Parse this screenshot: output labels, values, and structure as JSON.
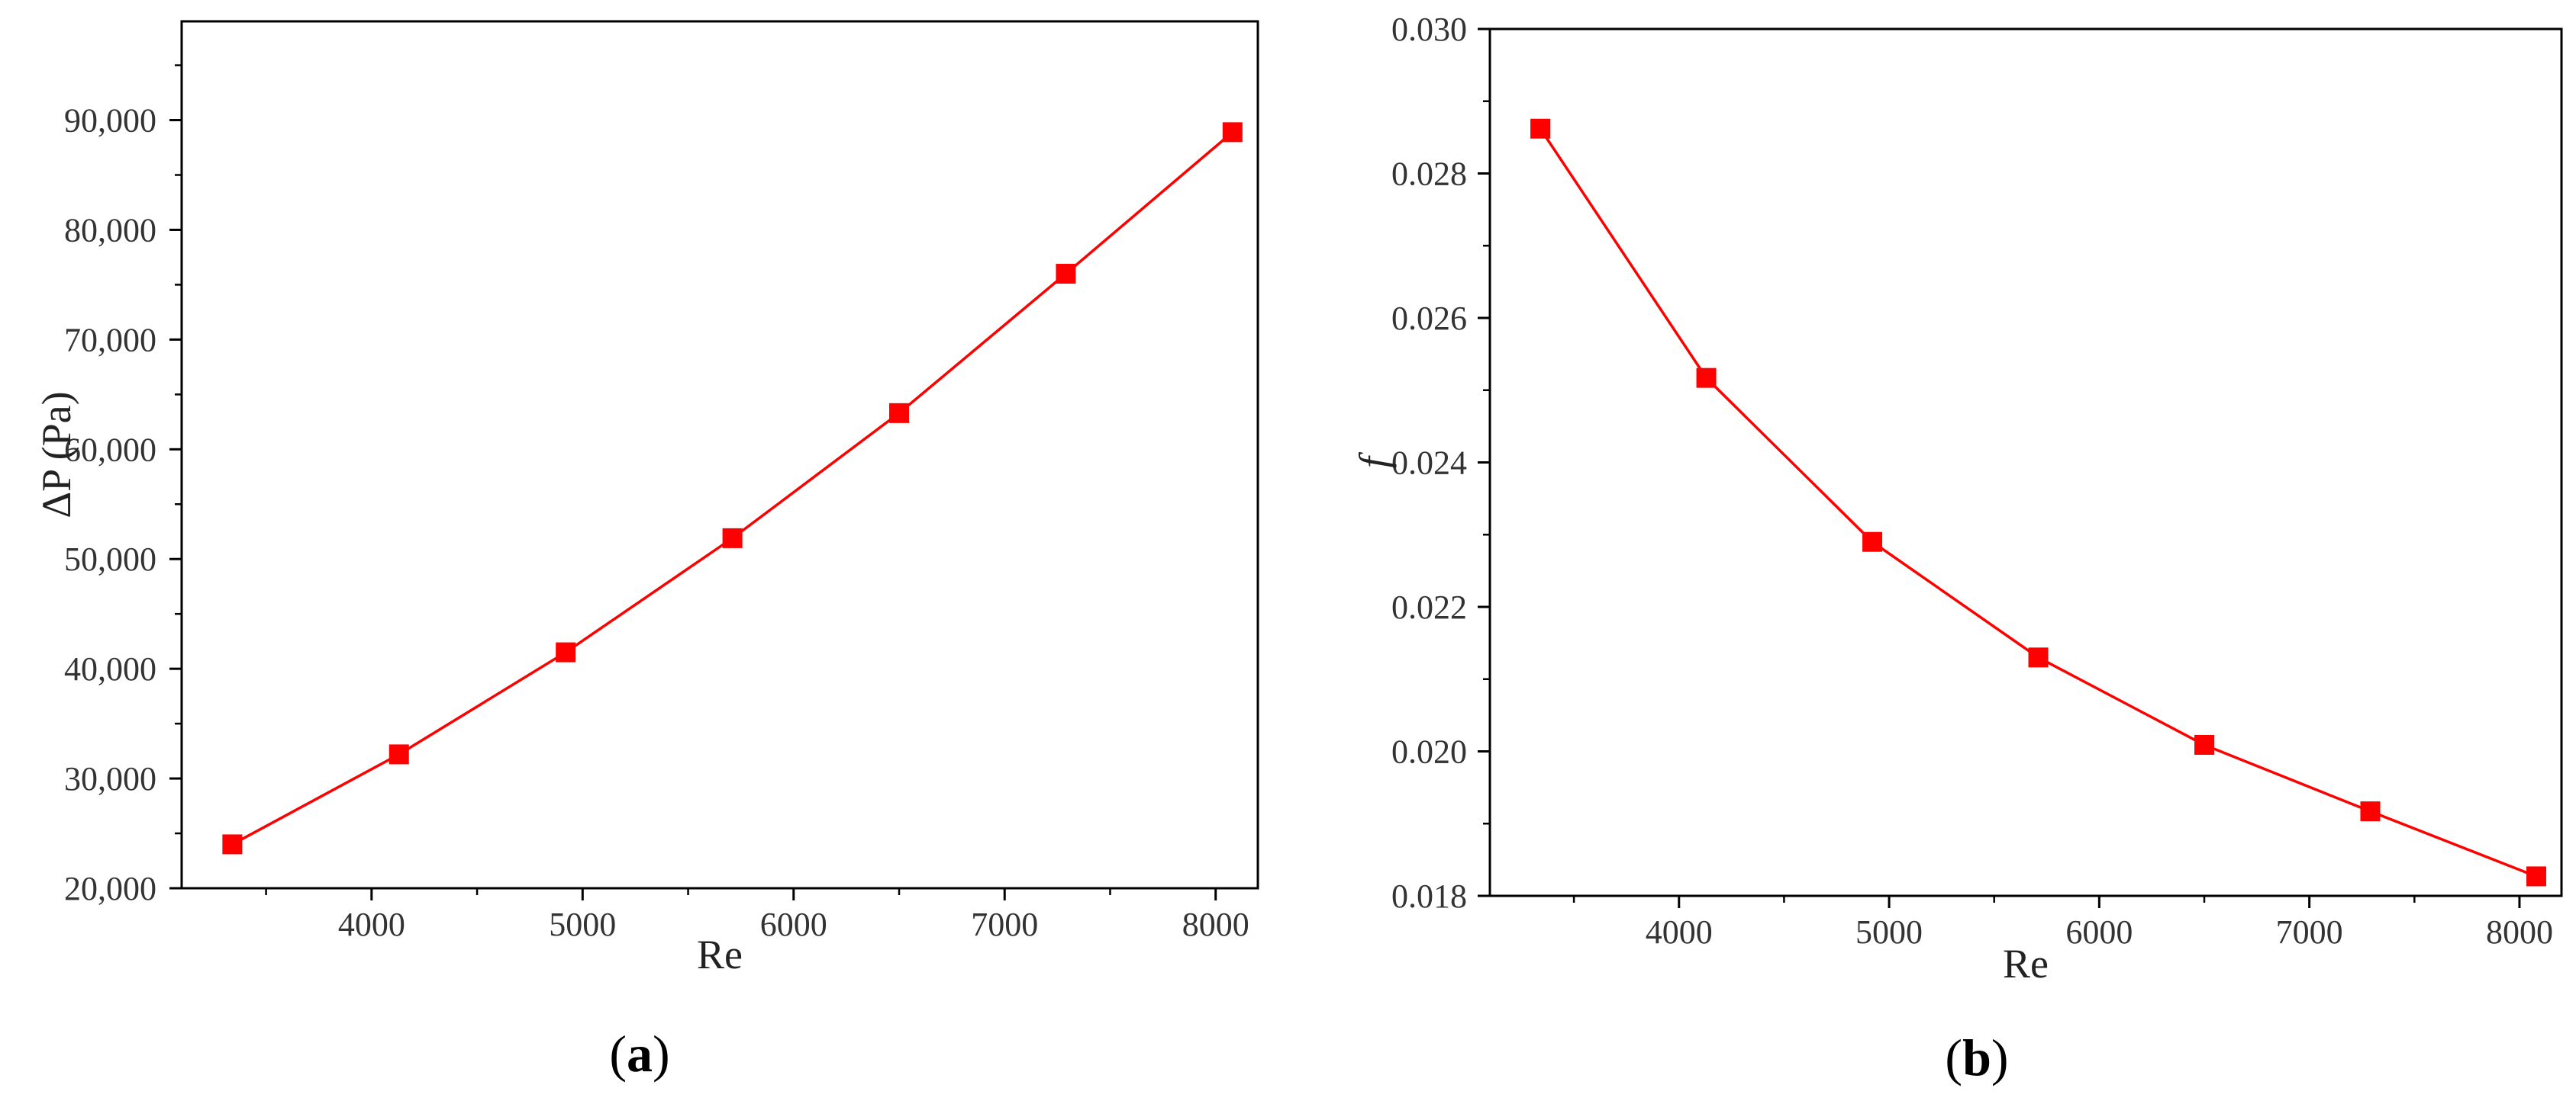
{
  "chart_data": [
    {
      "type": "line",
      "panel_label": "a",
      "xlabel": "Re",
      "ylabel": "ΔP (Pa)",
      "x": [
        3340,
        4130,
        4920,
        5710,
        6500,
        7290,
        8080
      ],
      "series": [
        {
          "values": [
            24000,
            32200,
            41500,
            51900,
            63300,
            76000,
            88900
          ],
          "color": "#ff0000",
          "marker": "square"
        }
      ],
      "xlim": [
        3100,
        8200
      ],
      "ylim": [
        20000,
        99000
      ],
      "xticks": [
        4000,
        5000,
        6000,
        7000,
        8000
      ],
      "xtick_labels": [
        "4000",
        "5000",
        "6000",
        "7000",
        "8000"
      ],
      "yticks": [
        20000,
        30000,
        40000,
        50000,
        60000,
        70000,
        80000,
        90000
      ],
      "ytick_labels": [
        "20,000",
        "30,000",
        "40,000",
        "50,000",
        "60,000",
        "70,000",
        "80,000",
        "90,000"
      ],
      "grid": false,
      "legend": "none"
    },
    {
      "type": "line",
      "panel_label": "b",
      "xlabel": "Re",
      "ylabel": "f",
      "x": [
        3340,
        4130,
        4920,
        5710,
        6500,
        7290,
        8080
      ],
      "series": [
        {
          "values": [
            0.02862,
            0.02517,
            0.0229,
            0.0213,
            0.02009,
            0.01917,
            0.01827
          ],
          "color": "#ff0000",
          "marker": "square"
        }
      ],
      "xlim": [
        3100,
        8200
      ],
      "ylim": [
        0.018,
        0.03
      ],
      "xticks": [
        4000,
        5000,
        6000,
        7000,
        8000
      ],
      "xtick_labels": [
        "4000",
        "5000",
        "6000",
        "7000",
        "8000"
      ],
      "yticks": [
        0.018,
        0.02,
        0.022,
        0.024,
        0.026,
        0.028,
        0.03
      ],
      "ytick_labels": [
        "0.018",
        "0.020",
        "0.022",
        "0.024",
        "0.026",
        "0.028",
        "0.030"
      ],
      "grid": false,
      "legend": "none"
    }
  ]
}
